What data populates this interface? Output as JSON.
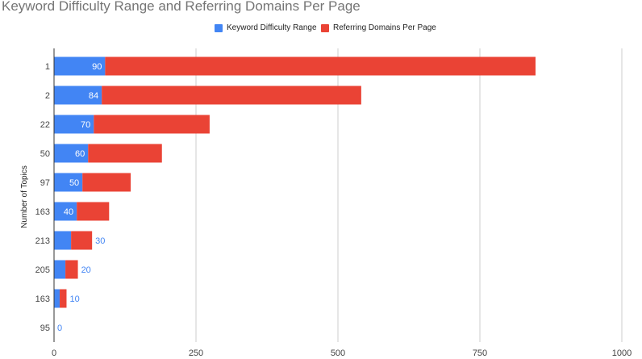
{
  "chart_data": {
    "type": "bar",
    "orientation": "horizontal",
    "stacked": true,
    "title": "Keyword Difficulty Range and Referring Domains Per Page",
    "xlabel": "",
    "ylabel": "Number of Topics",
    "xlim": [
      0,
      1000
    ],
    "xticks": [
      "0",
      "250",
      "500",
      "750",
      "1000"
    ],
    "grid": true,
    "legend_position": "top",
    "categories": [
      "1",
      "2",
      "22",
      "50",
      "97",
      "163",
      "213",
      "205",
      "163",
      "95"
    ],
    "series": [
      {
        "name": "Keyword Difficulty Range",
        "color": "#4285f4",
        "values": [
          90,
          84,
          70,
          60,
          50,
          40,
          30,
          20,
          10,
          0
        ],
        "labels": [
          "90",
          "84",
          "70",
          "60",
          "50",
          "40",
          "30",
          "20",
          "10",
          "0"
        ]
      },
      {
        "name": "Referring Domains Per Page",
        "color": "#ea4335",
        "values": [
          758,
          457,
          204,
          130,
          85,
          57,
          37,
          22,
          12,
          0
        ]
      }
    ]
  }
}
